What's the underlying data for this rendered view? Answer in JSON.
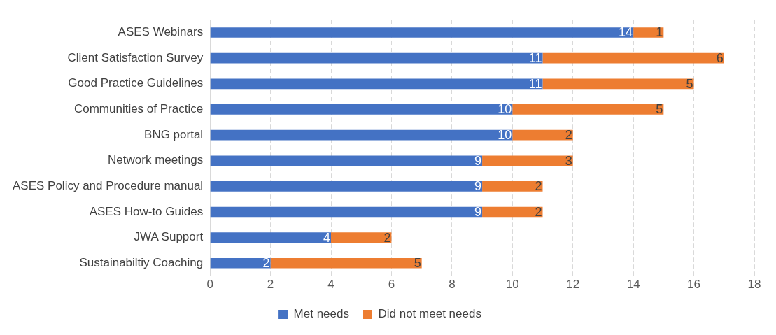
{
  "chart_data": {
    "type": "bar",
    "orientation": "horizontal",
    "stacked": true,
    "categories": [
      "ASES Webinars",
      "Client Satisfaction Survey",
      "Good Practice Guidelines",
      "Communities of Practice",
      "BNG portal",
      "Network meetings",
      "ASES Policy and Procedure manual",
      "ASES How-to Guides",
      "JWA Support",
      "Sustainabiltiy Coaching"
    ],
    "series": [
      {
        "name": "Met needs",
        "color": "#4472c4",
        "values": [
          14,
          11,
          11,
          10,
          10,
          9,
          9,
          9,
          4,
          2
        ]
      },
      {
        "name": "Did not meet needs",
        "color": "#ed7d31",
        "values": [
          1,
          6,
          5,
          5,
          2,
          3,
          2,
          2,
          2,
          5
        ]
      }
    ],
    "xlim": [
      0,
      18
    ],
    "xticks": [
      0,
      2,
      4,
      6,
      8,
      10,
      12,
      14,
      16,
      18
    ],
    "grid": "x",
    "legend": "bottom",
    "data_labels": true
  }
}
